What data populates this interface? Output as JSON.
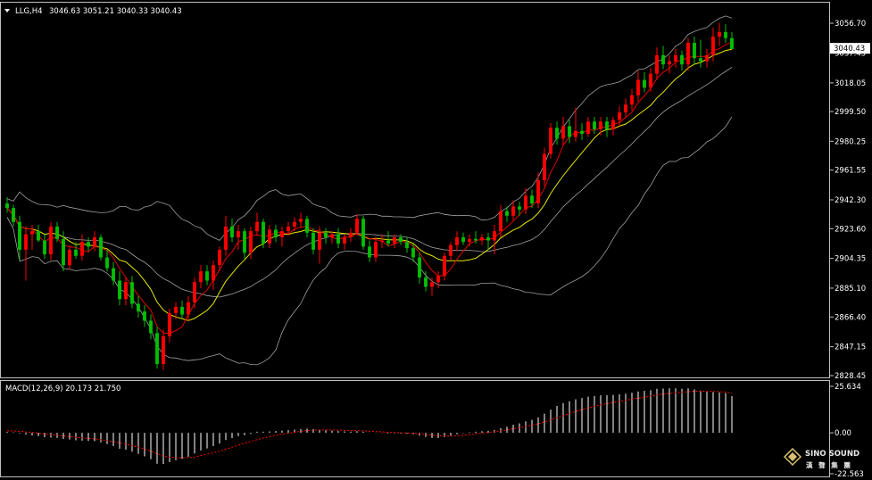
{
  "header": {
    "symbol": "LLG,H4",
    "ohlc": "3046.63 3051.21 3040.33 3040.43"
  },
  "price_panel": {
    "y_ticks": [
      "3056.70",
      "3037.45",
      "3018.05",
      "2999.50",
      "2980.25",
      "2961.55",
      "2942.30",
      "2923.60",
      "2904.35",
      "2885.10",
      "2866.40",
      "2847.15",
      "2828.45"
    ],
    "current_price": "3040.43"
  },
  "macd_panel": {
    "title": "MACD(12,26,9) 20.173 21.750",
    "y_ticks": [
      "25.634",
      "0.00",
      "-22.563"
    ]
  },
  "watermark": {
    "brand": "SINO SOUND",
    "cn_text": "漢 聲 集 團"
  },
  "colors": {
    "background": "#000000",
    "grid_border": "#c0c0c0",
    "bull": "#ff0000",
    "bear": "#00c000",
    "ma_fast": "#e00000",
    "ma_slow": "#e6e600",
    "bollinger": "#a0a0a0",
    "macd_hist": "#ffffff",
    "macd_signal": "#ff0000"
  },
  "chart_data": [
    {
      "type": "candlestick",
      "symbol": "LLG",
      "timeframe": "H4",
      "ylim": [
        2828.45,
        3056.7
      ],
      "candles": [
        [
          2940,
          2944,
          2934,
          2937
        ],
        [
          2937,
          2939,
          2925,
          2928
        ],
        [
          2928,
          2932,
          2903,
          2910
        ],
        [
          2910,
          2925,
          2890,
          2920
        ],
        [
          2920,
          2926,
          2910,
          2922
        ],
        [
          2922,
          2926,
          2915,
          2916
        ],
        [
          2916,
          2920,
          2904,
          2907
        ],
        [
          2907,
          2928,
          2903,
          2925
        ],
        [
          2925,
          2928,
          2915,
          2917
        ],
        [
          2917,
          2922,
          2896,
          2900
        ],
        [
          2900,
          2913,
          2897,
          2910
        ],
        [
          2910,
          2915,
          2904,
          2906
        ],
        [
          2906,
          2920,
          2903,
          2915
        ],
        [
          2915,
          2918,
          2909,
          2912
        ],
        [
          2912,
          2922,
          2909,
          2918
        ],
        [
          2918,
          2920,
          2903,
          2905
        ],
        [
          2905,
          2910,
          2896,
          2898
        ],
        [
          2898,
          2902,
          2887,
          2890
        ],
        [
          2890,
          2896,
          2874,
          2878
        ],
        [
          2878,
          2892,
          2874,
          2889
        ],
        [
          2889,
          2893,
          2872,
          2875
        ],
        [
          2875,
          2880,
          2866,
          2870
        ],
        [
          2870,
          2874,
          2860,
          2864
        ],
        [
          2864,
          2868,
          2852,
          2856
        ],
        [
          2856,
          2860,
          2833,
          2836
        ],
        [
          2836,
          2858,
          2832,
          2854
        ],
        [
          2854,
          2872,
          2850,
          2869
        ],
        [
          2869,
          2876,
          2865,
          2873
        ],
        [
          2873,
          2877,
          2866,
          2868
        ],
        [
          2868,
          2880,
          2864,
          2876
        ],
        [
          2876,
          2892,
          2872,
          2889
        ],
        [
          2889,
          2900,
          2885,
          2896
        ],
        [
          2896,
          2900,
          2887,
          2890
        ],
        [
          2890,
          2903,
          2884,
          2900
        ],
        [
          2900,
          2912,
          2896,
          2910
        ],
        [
          2910,
          2932,
          2906,
          2925
        ],
        [
          2925,
          2930,
          2915,
          2918
        ],
        [
          2918,
          2926,
          2910,
          2922
        ],
        [
          2922,
          2924,
          2904,
          2908
        ],
        [
          2908,
          2925,
          2904,
          2922
        ],
        [
          2922,
          2934,
          2919,
          2928
        ],
        [
          2928,
          2930,
          2911,
          2914
        ],
        [
          2914,
          2926,
          2911,
          2923
        ],
        [
          2923,
          2926,
          2915,
          2918
        ],
        [
          2918,
          2925,
          2912,
          2922
        ],
        [
          2922,
          2928,
          2919,
          2925
        ],
        [
          2925,
          2931,
          2922,
          2928
        ],
        [
          2928,
          2934,
          2924,
          2930
        ],
        [
          2930,
          2932,
          2918,
          2921
        ],
        [
          2921,
          2924,
          2907,
          2910
        ],
        [
          2910,
          2925,
          2901,
          2921
        ],
        [
          2921,
          2924,
          2914,
          2918
        ],
        [
          2918,
          2922,
          2914,
          2920
        ],
        [
          2920,
          2924,
          2911,
          2914
        ],
        [
          2914,
          2920,
          2910,
          2918
        ],
        [
          2918,
          2924,
          2915,
          2921
        ],
        [
          2921,
          2933,
          2919,
          2930
        ],
        [
          2930,
          2932,
          2910,
          2912
        ],
        [
          2912,
          2916,
          2902,
          2905
        ],
        [
          2905,
          2918,
          2902,
          2915
        ],
        [
          2915,
          2920,
          2911,
          2916
        ],
        [
          2916,
          2922,
          2912,
          2914
        ],
        [
          2914,
          2920,
          2911,
          2918
        ],
        [
          2918,
          2920,
          2913,
          2915
        ],
        [
          2915,
          2918,
          2908,
          2911
        ],
        [
          2911,
          2914,
          2902,
          2905
        ],
        [
          2905,
          2908,
          2888,
          2892
        ],
        [
          2892,
          2896,
          2883,
          2886
        ],
        [
          2886,
          2892,
          2880,
          2889
        ],
        [
          2889,
          2896,
          2885,
          2893
        ],
        [
          2893,
          2908,
          2890,
          2906
        ],
        [
          2906,
          2915,
          2903,
          2913
        ],
        [
          2913,
          2922,
          2909,
          2918
        ],
        [
          2918,
          2921,
          2913,
          2915
        ],
        [
          2915,
          2920,
          2912,
          2917
        ],
        [
          2917,
          2922,
          2914,
          2916
        ],
        [
          2916,
          2920,
          2913,
          2918
        ],
        [
          2918,
          2921,
          2910,
          2916
        ],
        [
          2916,
          2926,
          2907,
          2922
        ],
        [
          2922,
          2939,
          2918,
          2935
        ],
        [
          2935,
          2938,
          2928,
          2932
        ],
        [
          2932,
          2942,
          2929,
          2938
        ],
        [
          2938,
          2941,
          2932,
          2936
        ],
        [
          2936,
          2950,
          2933,
          2945
        ],
        [
          2945,
          2949,
          2937,
          2940
        ],
        [
          2940,
          2960,
          2937,
          2955
        ],
        [
          2955,
          2976,
          2951,
          2972
        ],
        [
          2972,
          2992,
          2969,
          2989
        ],
        [
          2989,
          2993,
          2978,
          2982
        ],
        [
          2982,
          2996,
          2978,
          2990
        ],
        [
          2990,
          2994,
          2979,
          2983
        ],
        [
          2983,
          3002,
          2980,
          2987
        ],
        [
          2987,
          2992,
          2981,
          2985
        ],
        [
          2985,
          2996,
          2983,
          2993
        ],
        [
          2993,
          2996,
          2985,
          2988
        ],
        [
          2988,
          2996,
          2984,
          2993
        ],
        [
          2993,
          2996,
          2983,
          2988
        ],
        [
          2988,
          2996,
          2984,
          2994
        ],
        [
          2994,
          3003,
          2990,
          2999
        ],
        [
          2999,
          3008,
          2996,
          3004
        ],
        [
          3004,
          3014,
          3000,
          3010
        ],
        [
          3010,
          3026,
          3006,
          3020
        ],
        [
          3020,
          3025,
          3012,
          3015
        ],
        [
          3015,
          3028,
          3012,
          3024
        ],
        [
          3024,
          3041,
          3020,
          3036
        ],
        [
          3036,
          3042,
          3027,
          3030
        ],
        [
          3030,
          3036,
          3024,
          3032
        ],
        [
          3032,
          3040,
          3028,
          3036
        ],
        [
          3036,
          3039,
          3026,
          3030
        ],
        [
          3030,
          3047,
          3026,
          3044
        ],
        [
          3044,
          3048,
          3030,
          3034
        ],
        [
          3034,
          3046,
          3028,
          3032
        ],
        [
          3032,
          3040,
          3028,
          3036
        ],
        [
          3036,
          3054,
          3032,
          3048
        ],
        [
          3048,
          3057,
          3042,
          3051
        ],
        [
          3051,
          3056,
          3044,
          3047
        ],
        [
          3047,
          3051,
          3040,
          3040
        ]
      ],
      "overlays": [
        "moving average (red)",
        "moving average (yellow)",
        "Bollinger Bands"
      ]
    },
    {
      "type": "bar",
      "title": "MACD(12,26,9) 20.173 21.750",
      "macd_value": 20.173,
      "signal_value": 21.75,
      "ylim": [
        -22.563,
        25.634
      ],
      "series": [
        {
          "name": "MACD",
          "values": [
            0.5,
            0.3,
            -0.4,
            -1.0,
            -1.4,
            -1.8,
            -2.4,
            -2.6,
            -2.8,
            -3.4,
            -3.7,
            -4.1,
            -4.3,
            -4.5,
            -4.6,
            -5.3,
            -6.2,
            -7.3,
            -8.8,
            -9.3,
            -10.4,
            -11.6,
            -13.0,
            -14.5,
            -17.0,
            -17.2,
            -16.2,
            -15.1,
            -14.3,
            -13.2,
            -11.4,
            -9.8,
            -8.6,
            -7.3,
            -5.9,
            -4.0,
            -2.9,
            -1.8,
            -1.3,
            -0.6,
            0.6,
            0.6,
            0.8,
            1.0,
            1.2,
            1.5,
            1.8,
            2.1,
            2.3,
            2.1,
            1.8,
            1.4,
            1.2,
            1.0,
            0.8,
            0.7,
            0.9,
            0.6,
            0.1,
            -0.1,
            -0.2,
            -0.3,
            -0.3,
            -0.4,
            -0.5,
            -0.8,
            -1.6,
            -2.3,
            -2.8,
            -2.9,
            -2.4,
            -1.6,
            -0.8,
            -0.2,
            0.3,
            0.6,
            0.9,
            1.1,
            1.6,
            2.5,
            3.4,
            4.4,
            5.2,
            6.3,
            7.1,
            8.5,
            10.6,
            12.8,
            14.8,
            16.4,
            17.4,
            18.5,
            19.2,
            19.9,
            20.3,
            20.7,
            20.8,
            20.9,
            21.2,
            21.6,
            22.1,
            22.8,
            23.1,
            23.5,
            24.3,
            24.4,
            24.5,
            24.5,
            24.3,
            24.5,
            24.0,
            23.3,
            22.8,
            22.5,
            22.3,
            21.9,
            20.2
          ]
        },
        {
          "name": "Signal",
          "values": [
            1.2,
            1.0,
            0.8,
            0.5,
            0.2,
            -0.2,
            -0.6,
            -1.0,
            -1.3,
            -1.7,
            -2.1,
            -2.5,
            -2.8,
            -3.1,
            -3.4,
            -3.8,
            -4.3,
            -4.9,
            -5.5,
            -6.2,
            -7.0,
            -7.9,
            -9.0,
            -10.1,
            -11.5,
            -12.6,
            -13.4,
            -13.7,
            -13.8,
            -13.7,
            -13.3,
            -12.5,
            -11.8,
            -11.0,
            -10.1,
            -9.0,
            -7.9,
            -6.8,
            -5.8,
            -4.8,
            -3.8,
            -2.9,
            -2.1,
            -1.4,
            -0.8,
            -0.2,
            0.3,
            0.8,
            1.2,
            1.5,
            1.6,
            1.6,
            1.6,
            1.5,
            1.4,
            1.3,
            1.2,
            1.1,
            0.9,
            0.7,
            0.5,
            0.3,
            0.2,
            0.0,
            -0.1,
            -0.3,
            -0.6,
            -0.9,
            -1.3,
            -1.6,
            -1.8,
            -1.8,
            -1.6,
            -1.3,
            -1.0,
            -0.6,
            -0.2,
            0.2,
            0.6,
            1.1,
            1.6,
            2.2,
            2.8,
            3.5,
            4.2,
            5.0,
            6.0,
            7.1,
            8.3,
            9.5,
            10.7,
            11.8,
            12.8,
            13.7,
            14.6,
            15.4,
            16.1,
            16.7,
            17.3,
            17.9,
            18.5,
            19.1,
            19.6,
            20.2,
            20.8,
            21.3,
            21.7,
            22.1,
            22.4,
            22.7,
            22.9,
            23.0,
            22.9,
            22.8,
            22.7,
            22.5,
            21.8
          ]
        }
      ]
    }
  ]
}
